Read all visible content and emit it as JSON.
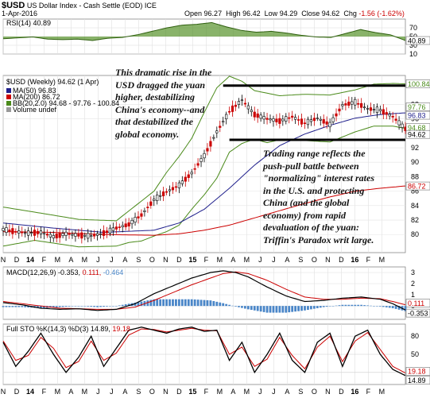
{
  "header": {
    "symbol": "$USD",
    "name": "US Dollar Index - Cash Settle (EOD)",
    "exchange": "ICE",
    "date": "1-Apr-2016",
    "open_label": "Open",
    "open": "96.27",
    "high_label": "High",
    "high": "96.42",
    "low_label": "Low",
    "low": "94.29",
    "close_label": "Close",
    "close": "94.62",
    "chg_label": "Chg",
    "chg": "-1.56 (-1.62%)"
  },
  "colors": {
    "price_bar_up": "#000000",
    "price_bar_down": "#cc0000",
    "ma50": "#1f1f8c",
    "ma200": "#cc0000",
    "bb": "#4a8a1a",
    "rsi_fill": "#4a8a1a",
    "macd_line": "#000000",
    "macd_signal": "#cc0000",
    "macd_hist": "#4a86c8",
    "sto_k": "#000000",
    "sto_d": "#cc0000"
  },
  "chart_data": [
    {
      "type": "line",
      "panel": "RSI",
      "legend": "RSI(14) 40.89",
      "ylim": [
        10,
        90
      ],
      "yticks": [
        "70",
        "50",
        "30",
        "10"
      ],
      "current_value": "40.89",
      "x": [
        0,
        4,
        8,
        12,
        16,
        20,
        24,
        28,
        32,
        36,
        40,
        44,
        48,
        52,
        56,
        60,
        64,
        68,
        72,
        76,
        80,
        84,
        88,
        92,
        96,
        100,
        104,
        108
      ],
      "values": [
        45,
        47,
        49,
        44,
        43,
        44,
        41,
        46,
        48,
        54,
        62,
        70,
        76,
        78,
        82,
        72,
        64,
        60,
        62,
        58,
        53,
        49,
        48,
        57,
        66,
        59,
        54,
        41
      ]
    },
    {
      "type": "line",
      "panel": "Price",
      "legend": {
        "title": "$USD (Weekly) 94.62 (1 Apr)",
        "ma50": "MA(50) 96.83",
        "ma200": "MA(200) 86.72",
        "bb": "BB(20,2.0) 94.68 - 97.76 - 100.84",
        "volume": "Volume undef"
      },
      "ylim": [
        77.5,
        102
      ],
      "yticks": [
        "98",
        "96",
        "92",
        "90",
        "88",
        "86",
        "84",
        "82",
        "80"
      ],
      "value_flags": [
        "100.84",
        "97.76",
        "96.83",
        "94.68",
        "94.62",
        "86.72"
      ],
      "x_labels": [
        "N",
        "D",
        "14",
        "F",
        "M",
        "A",
        "M",
        "J",
        "J",
        "A",
        "S",
        "O",
        "N",
        "D",
        "15",
        "F",
        "M",
        "A",
        "M",
        "J",
        "J",
        "A",
        "S",
        "O",
        "N",
        "D",
        "16",
        "F",
        "M"
      ],
      "x_label_weeks": [
        0,
        4.3,
        8.6,
        13,
        17.3,
        21.6,
        25.9,
        30.2,
        34.5,
        38.8,
        43.1,
        47.4,
        51.7,
        56,
        60.3,
        64.6,
        68.9,
        73.2,
        77.5,
        81.8,
        86.1,
        90.4,
        94.7,
        99,
        103.3,
        107.6,
        111.9,
        116.2,
        120.5
      ],
      "series": [
        {
          "name": "$USD",
          "x": [
            0,
            4,
            8,
            12,
            16,
            20,
            24,
            28,
            32,
            36,
            40,
            44,
            48,
            52,
            56,
            60,
            64,
            68,
            72,
            76,
            80,
            84,
            88,
            92,
            96,
            100,
            104,
            108,
            112,
            116,
            120,
            124,
            128
          ],
          "values": [
            80.7,
            80.4,
            80.2,
            80.3,
            79.7,
            80.1,
            79.9,
            79.8,
            80.2,
            80.9,
            81.4,
            82.7,
            84.8,
            85.9,
            86.8,
            88.5,
            90.9,
            94.2,
            97.0,
            98.6,
            96.6,
            96.0,
            95.7,
            96.3,
            95.4,
            96.1,
            95.2,
            97.9,
            98.3,
            97.4,
            97.2,
            96.3,
            94.62
          ]
        },
        {
          "name": "MA(50)",
          "x": [
            0,
            16,
            32,
            48,
            56,
            64,
            72,
            80,
            88,
            96,
            104,
            112,
            120,
            128
          ],
          "values": [
            81.6,
            80.9,
            80.3,
            80.6,
            81.6,
            83.5,
            86.4,
            89.6,
            92.3,
            93.9,
            95.1,
            96.1,
            96.6,
            96.83
          ]
        },
        {
          "name": "MA(200)",
          "x": [
            0,
            16,
            32,
            48,
            56,
            64,
            72,
            80,
            88,
            96,
            104,
            112,
            120,
            128
          ],
          "values": [
            80.4,
            80.3,
            80.0,
            79.9,
            80.1,
            80.6,
            81.3,
            82.3,
            83.3,
            84.3,
            85.2,
            86.0,
            86.4,
            86.72
          ]
        },
        {
          "name": "BB upper",
          "x": [
            0,
            10,
            24,
            36,
            48,
            52,
            56,
            60,
            64,
            68,
            72,
            76,
            80,
            88,
            96,
            104,
            112,
            118,
            124,
            128
          ],
          "values": [
            83.8,
            83.1,
            82.1,
            81.9,
            86.0,
            88.6,
            90.8,
            93.3,
            96.9,
            100.3,
            101.9,
            101.2,
            99.9,
            99.2,
            99.4,
            99.3,
            100.0,
            100.8,
            100.9,
            100.84
          ]
        },
        {
          "name": "BB lower",
          "x": [
            0,
            10,
            24,
            36,
            40,
            44,
            48,
            52,
            56,
            60,
            64,
            68,
            72,
            76,
            80,
            84,
            88,
            96,
            104,
            112,
            118,
            124,
            128
          ],
          "values": [
            78.4,
            79.2,
            78.3,
            78.4,
            78.9,
            79.1,
            79.8,
            80.4,
            81.3,
            83.5,
            85.5,
            87.8,
            91.4,
            92.6,
            93.2,
            92.7,
            93.1,
            93.0,
            92.8,
            94.2,
            95.0,
            95.0,
            94.68
          ]
        },
        {
          "name": "Trading range top",
          "x": [
            70,
            128
          ],
          "values": [
            100.6,
            100.6
          ]
        },
        {
          "name": "Trading range bottom",
          "x": [
            72,
            128
          ],
          "values": [
            93.1,
            93.1
          ]
        }
      ],
      "annotations": [
        "This dramatic rise in the\nUSD dragged the yuan\nhigher, destabilizing\nChina's economy--and\nthat destabilized the\nglobal economy.",
        "Trading range reflects the\npush-pull battle between\n\"normalizing\" interest rates\nin the U.S. and protecting\nChina (and the global\neconomy) from rapid\ndevaluation of the yuan:\nTriffin's Paradox writ large."
      ]
    },
    {
      "type": "line",
      "panel": "MACD",
      "legend": {
        "label": "MACD(12,26,9)",
        "macd": "-0.353,",
        "signal": "0.111,",
        "hist": "-0.464"
      },
      "ylim": [
        -1.2,
        3.5
      ],
      "yticks": [
        "3",
        "2",
        "1",
        "0"
      ],
      "value_flags": [
        "0.111",
        "-0.353"
      ],
      "series": [
        {
          "name": "MACD",
          "x": [
            0,
            6,
            12,
            18,
            24,
            30,
            36,
            42,
            48,
            54,
            60,
            66,
            70,
            74,
            78,
            84,
            90,
            96,
            102,
            108,
            114,
            120,
            124,
            128
          ],
          "values": [
            0.3,
            0.1,
            -0.2,
            -0.3,
            -0.25,
            -0.4,
            -0.3,
            0.2,
            1.1,
            1.8,
            2.5,
            3.0,
            3.15,
            3.0,
            2.6,
            1.7,
            0.9,
            0.4,
            0.5,
            0.7,
            0.8,
            0.6,
            0.2,
            -0.353
          ]
        },
        {
          "name": "Signal",
          "x": [
            0,
            6,
            12,
            18,
            24,
            30,
            36,
            42,
            48,
            54,
            60,
            66,
            70,
            74,
            78,
            84,
            90,
            96,
            102,
            108,
            114,
            120,
            124,
            128
          ],
          "values": [
            0.4,
            0.2,
            0.0,
            -0.2,
            -0.25,
            -0.3,
            -0.3,
            -0.1,
            0.5,
            1.2,
            1.9,
            2.5,
            2.9,
            3.05,
            2.9,
            2.3,
            1.5,
            0.8,
            0.6,
            0.6,
            0.7,
            0.65,
            0.4,
            0.111
          ]
        },
        {
          "name": "Histogram",
          "x": [
            0,
            6,
            12,
            18,
            24,
            30,
            36,
            42,
            48,
            54,
            60,
            66,
            70,
            74,
            78,
            84,
            90,
            96,
            102,
            108,
            114,
            120,
            124,
            128
          ],
          "values": [
            -0.1,
            -0.1,
            -0.2,
            -0.1,
            0.0,
            -0.1,
            0.0,
            0.3,
            0.6,
            0.6,
            0.6,
            0.5,
            0.25,
            -0.05,
            -0.3,
            -0.6,
            -0.6,
            -0.4,
            -0.1,
            0.1,
            0.1,
            -0.05,
            -0.2,
            -0.464
          ]
        }
      ]
    },
    {
      "type": "line",
      "panel": "Full STO",
      "legend": {
        "label": "Full STO %K(14,3) %D(3) 14.89,",
        "d": "19.18"
      },
      "ylim": [
        0,
        100
      ],
      "yticks": [
        "80",
        "50",
        "20"
      ],
      "value_flags": [
        "19.18",
        "14.89"
      ],
      "x_labels": [
        "N",
        "D",
        "14",
        "F",
        "M",
        "A",
        "M",
        "J",
        "J",
        "A",
        "S",
        "O",
        "N",
        "D",
        "15",
        "F",
        "M",
        "A",
        "M",
        "J",
        "J",
        "A",
        "S",
        "O",
        "N",
        "D",
        "16",
        "F",
        "M"
      ],
      "series": [
        {
          "name": "%K",
          "x": [
            0,
            4,
            8,
            12,
            16,
            20,
            24,
            28,
            32,
            36,
            40,
            44,
            48,
            52,
            56,
            60,
            64,
            68,
            72,
            76,
            80,
            84,
            88,
            92,
            96,
            100,
            104,
            108,
            112,
            116,
            120,
            124,
            128
          ],
          "values": [
            70,
            30,
            55,
            85,
            50,
            20,
            45,
            80,
            30,
            60,
            90,
            95,
            90,
            85,
            92,
            95,
            88,
            90,
            40,
            70,
            20,
            50,
            85,
            40,
            20,
            70,
            85,
            30,
            80,
            90,
            50,
            25,
            14.89
          ]
        },
        {
          "name": "%D",
          "x": [
            0,
            4,
            8,
            12,
            16,
            20,
            24,
            28,
            32,
            36,
            40,
            44,
            48,
            52,
            56,
            60,
            64,
            68,
            72,
            76,
            80,
            84,
            88,
            92,
            96,
            100,
            104,
            108,
            112,
            116,
            120,
            124,
            128
          ],
          "values": [
            72,
            40,
            48,
            78,
            60,
            28,
            38,
            72,
            40,
            52,
            82,
            92,
            91,
            87,
            90,
            93,
            90,
            89,
            50,
            62,
            30,
            42,
            78,
            48,
            26,
            62,
            80,
            38,
            72,
            86,
            58,
            30,
            19.18
          ]
        }
      ]
    }
  ]
}
